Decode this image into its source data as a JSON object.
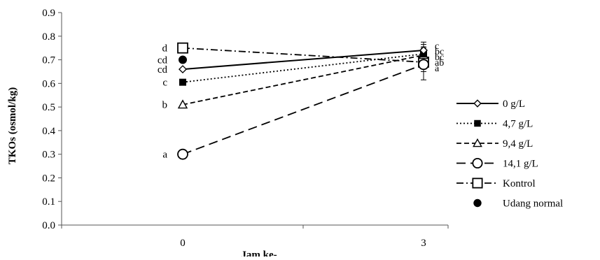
{
  "chart_data": {
    "type": "line",
    "title": "",
    "xlabel": "Jam ke-",
    "ylabel": "TKOs (osmol/kg)",
    "categories": [
      "0",
      "3"
    ],
    "ylim": [
      0,
      0.9
    ],
    "yticks": [
      "0.0",
      "0.1",
      "0.2",
      "0.3",
      "0.4",
      "0.5",
      "0.6",
      "0.7",
      "0.8",
      "0.9"
    ],
    "grid": false,
    "legend_position": "right",
    "series": [
      {
        "name": "0 g/L",
        "values": [
          0.66,
          0.74
        ],
        "marker": "diamond-open",
        "line": "solid",
        "labels": [
          "cd",
          "c"
        ],
        "error": [
          0,
          0.035
        ]
      },
      {
        "name": "4,7 g/L",
        "values": [
          0.605,
          0.725
        ],
        "marker": "square-filled",
        "line": "dotted",
        "labels": [
          "c",
          "bc"
        ],
        "error": [
          0,
          0.03
        ]
      },
      {
        "name": "9,4 g/L",
        "values": [
          0.51,
          0.72
        ],
        "marker": "triangle-open",
        "line": "dashed-short",
        "labels": [
          "b",
          "bc"
        ],
        "error": [
          0,
          0.03
        ]
      },
      {
        "name": "14,1 g/L",
        "values": [
          0.3,
          0.68
        ],
        "marker": "circle-open",
        "line": "dashed-long",
        "labels": [
          "a",
          "a"
        ],
        "error": [
          0,
          0.03
        ]
      },
      {
        "name": "Kontrol",
        "values": [
          0.75,
          0.69
        ],
        "marker": "square-open",
        "line": "dashdot",
        "labels": [
          "d",
          "ab"
        ],
        "error": [
          0,
          0.075
        ]
      },
      {
        "name": "Udang normal",
        "values": [
          0.7,
          null
        ],
        "marker": "circle-filled",
        "line": "none",
        "labels": [
          "cd",
          ""
        ],
        "error": [
          0,
          0
        ]
      }
    ]
  }
}
